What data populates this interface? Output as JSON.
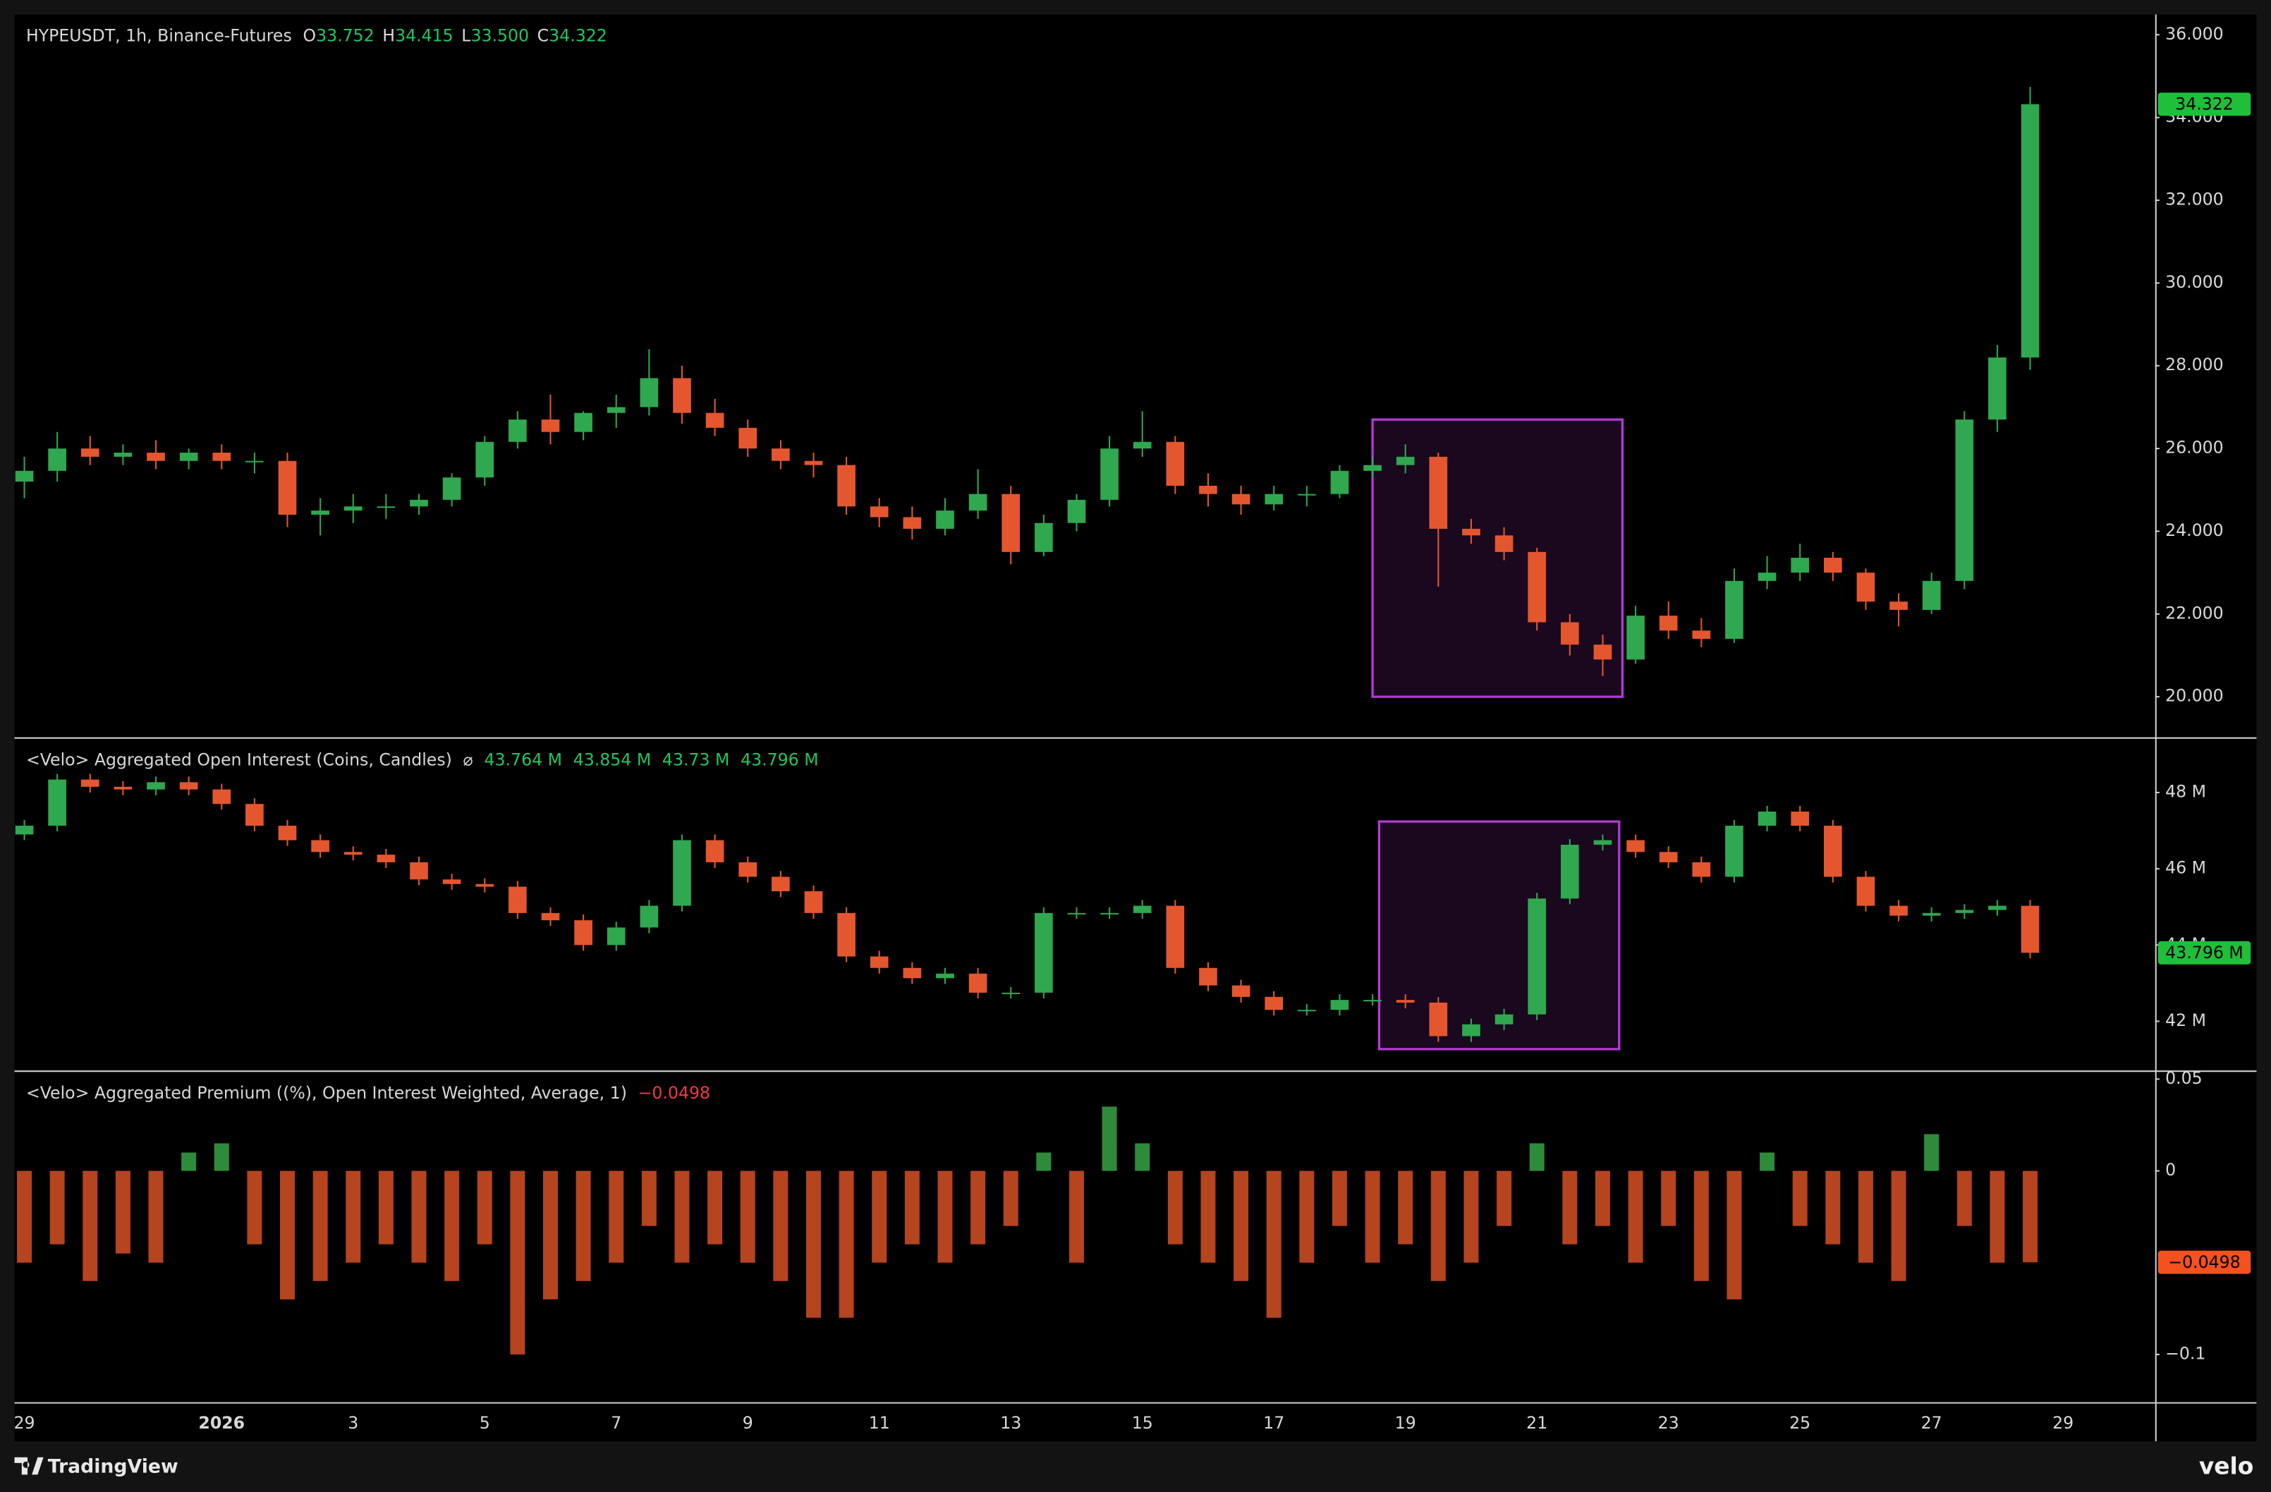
{
  "chart_data": [
    {
      "type": "candlestick",
      "title": "HYPEUSDT, 1h, Binance-Futures",
      "ohlc_labels": [
        "O",
        "H",
        "L",
        "C"
      ],
      "ohlc_values": [
        "33.752",
        "34.415",
        "33.500",
        "34.322"
      ],
      "x": [
        0,
        0.5,
        1,
        1.5,
        2,
        2.5,
        3,
        3.5,
        4,
        4.5,
        5,
        5.5,
        6,
        6.5,
        7,
        7.5,
        8,
        8.5,
        9,
        9.5,
        10,
        10.5,
        11,
        11.5,
        12,
        12.5,
        13,
        13.5,
        14,
        14.5,
        15,
        15.5,
        16,
        16.5,
        17,
        17.5,
        18,
        18.5,
        19,
        19.5,
        20,
        20.5,
        21,
        21.5,
        22,
        22.5,
        23,
        23.5,
        24,
        24.5,
        25,
        25.5,
        26,
        26.5,
        27,
        27.5,
        28,
        28.5,
        29,
        29.5,
        30,
        30.5
      ],
      "open": [
        25.2,
        25.46,
        26.0,
        25.8,
        25.9,
        25.7,
        25.9,
        25.7,
        25.7,
        24.4,
        24.5,
        24.6,
        24.6,
        24.76,
        25.3,
        26.16,
        26.7,
        26.4,
        26.86,
        27.0,
        27.7,
        26.86,
        26.5,
        26.0,
        25.7,
        25.6,
        24.6,
        24.34,
        24.06,
        24.5,
        24.9,
        23.5,
        24.2,
        24.76,
        26.0,
        26.16,
        25.1,
        24.9,
        24.65,
        24.9,
        24.9,
        25.46,
        25.6,
        25.8,
        24.06,
        23.9,
        23.5,
        21.8,
        21.26,
        20.9,
        21.96,
        21.6,
        21.4,
        22.8,
        23.0,
        23.36,
        23.0,
        22.3,
        22.1,
        22.8,
        26.7,
        28.2
      ],
      "high": [
        25.8,
        26.4,
        26.3,
        26.1,
        26.2,
        26.0,
        26.1,
        25.9,
        25.9,
        24.8,
        24.9,
        24.9,
        24.9,
        25.4,
        26.3,
        26.9,
        27.3,
        26.9,
        27.3,
        28.4,
        28.0,
        27.2,
        26.7,
        26.2,
        25.9,
        25.8,
        24.8,
        24.6,
        24.8,
        25.5,
        25.1,
        24.4,
        24.9,
        26.3,
        26.9,
        26.3,
        25.4,
        25.1,
        25.1,
        25.1,
        25.6,
        25.8,
        26.1,
        25.9,
        24.3,
        24.1,
        23.6,
        22.0,
        21.5,
        22.2,
        22.3,
        21.9,
        23.1,
        23.4,
        23.7,
        23.5,
        23.1,
        22.5,
        23.0,
        26.9,
        28.5,
        34.74
      ],
      "low": [
        24.8,
        25.2,
        25.6,
        25.6,
        25.5,
        25.5,
        25.5,
        25.4,
        24.1,
        23.9,
        24.2,
        24.3,
        24.4,
        24.6,
        25.1,
        26.0,
        26.1,
        26.2,
        26.5,
        26.8,
        26.6,
        26.3,
        25.8,
        25.5,
        25.3,
        24.4,
        24.1,
        23.8,
        23.9,
        24.3,
        23.2,
        23.4,
        24.0,
        24.6,
        25.8,
        24.9,
        24.6,
        24.4,
        24.5,
        24.6,
        24.8,
        25.3,
        25.4,
        22.66,
        23.7,
        23.3,
        21.6,
        21.0,
        20.5,
        20.8,
        21.4,
        21.2,
        21.3,
        22.6,
        22.8,
        22.8,
        22.1,
        21.7,
        22.0,
        22.6,
        26.4,
        27.9
      ],
      "close": [
        25.46,
        26.0,
        25.8,
        25.9,
        25.7,
        25.9,
        25.7,
        25.7,
        24.4,
        24.5,
        24.6,
        24.6,
        24.76,
        25.3,
        26.16,
        26.7,
        26.4,
        26.86,
        27.0,
        27.7,
        26.86,
        26.5,
        26.0,
        25.7,
        25.6,
        24.6,
        24.34,
        24.06,
        24.5,
        24.9,
        23.5,
        24.2,
        24.76,
        26.0,
        26.16,
        25.1,
        24.9,
        24.65,
        24.9,
        24.9,
        25.46,
        25.6,
        25.8,
        24.06,
        23.9,
        23.5,
        21.8,
        21.26,
        20.9,
        21.96,
        21.6,
        21.4,
        22.8,
        23.0,
        23.36,
        23.0,
        22.3,
        22.1,
        22.8,
        26.7,
        28.2,
        34.322
      ],
      "up_color": "#2fa84f",
      "down_color": "#e4572e",
      "ylim": [
        19.02,
        36.49
      ],
      "yticks": [
        {
          "value": 20,
          "label": "20.000"
        },
        {
          "value": 22,
          "label": "22.000"
        },
        {
          "value": 24,
          "label": "24.000"
        },
        {
          "value": 26,
          "label": "26.000"
        },
        {
          "value": 28,
          "label": "28.000"
        },
        {
          "value": 30,
          "label": "30.000"
        },
        {
          "value": 32,
          "label": "32.000"
        },
        {
          "value": 34,
          "label": "34.000"
        },
        {
          "value": 36,
          "label": "36.000"
        }
      ],
      "grid": false,
      "last_value": {
        "value": 34.322,
        "label": "34.322",
        "color": "#1fbf3a"
      },
      "highlight": {
        "x": [
          20.5,
          24.3
        ],
        "y": [
          20.0,
          26.7
        ],
        "color": "#b23bd6"
      }
    },
    {
      "type": "candlestick",
      "title": "<Velo> Aggregated Open Interest (Coins, Candles)",
      "status_icon": "⌀",
      "ohlc_values": [
        "43.764 M",
        "43.854 M",
        "43.73 M",
        "43.796 M"
      ],
      "x": [
        0,
        0.5,
        1,
        1.5,
        2,
        2.5,
        3,
        3.5,
        4,
        4.5,
        5,
        5.5,
        6,
        6.5,
        7,
        7.5,
        8,
        8.5,
        9,
        9.5,
        10,
        10.5,
        11,
        11.5,
        12,
        12.5,
        13,
        13.5,
        14,
        14.5,
        15,
        15.5,
        16,
        16.5,
        17,
        17.5,
        18,
        18.5,
        19,
        19.5,
        20,
        20.5,
        21,
        21.5,
        22,
        22.5,
        23,
        23.5,
        24,
        24.5,
        25,
        25.5,
        26,
        26.5,
        27,
        27.5,
        28,
        28.5,
        29,
        29.5,
        30,
        30.5
      ],
      "open": [
        46.9,
        47.13,
        48.34,
        48.15,
        48.08,
        48.27,
        48.08,
        47.7,
        47.13,
        46.75,
        46.44,
        46.37,
        46.17,
        45.72,
        45.6,
        45.53,
        44.84,
        44.65,
        44.0,
        44.46,
        45.03,
        46.75,
        46.17,
        45.79,
        45.41,
        44.84,
        43.7,
        43.4,
        43.13,
        43.25,
        42.75,
        42.75,
        44.84,
        44.84,
        44.84,
        45.03,
        43.4,
        42.94,
        42.64,
        42.3,
        42.3,
        42.56,
        42.56,
        42.49,
        41.61,
        41.92,
        42.18,
        45.22,
        46.63,
        46.75,
        46.44,
        46.17,
        45.79,
        47.13,
        47.5,
        47.13,
        45.79,
        45.03,
        44.77,
        44.84,
        44.92,
        45.03
      ],
      "high": [
        47.28,
        48.49,
        48.49,
        48.3,
        48.42,
        48.42,
        48.23,
        47.85,
        47.28,
        46.9,
        46.59,
        46.52,
        46.32,
        45.87,
        45.75,
        45.68,
        44.99,
        44.8,
        44.61,
        45.18,
        46.9,
        46.9,
        46.32,
        45.94,
        45.56,
        44.99,
        43.85,
        43.55,
        43.4,
        43.4,
        42.9,
        44.99,
        44.99,
        44.99,
        45.18,
        45.18,
        43.55,
        43.09,
        42.79,
        42.45,
        42.71,
        42.71,
        42.71,
        42.64,
        42.07,
        42.33,
        45.37,
        46.78,
        46.9,
        46.9,
        46.59,
        46.32,
        47.28,
        47.65,
        47.65,
        47.28,
        45.94,
        45.18,
        44.99,
        45.07,
        45.18,
        45.18
      ],
      "low": [
        46.75,
        46.98,
        48.0,
        47.93,
        47.93,
        47.93,
        47.55,
        46.98,
        46.6,
        46.29,
        46.22,
        46.02,
        45.57,
        45.45,
        45.38,
        44.69,
        44.5,
        43.85,
        43.85,
        44.31,
        44.88,
        46.02,
        45.64,
        45.26,
        44.69,
        43.55,
        43.25,
        42.98,
        42.98,
        42.6,
        42.6,
        42.6,
        44.69,
        44.69,
        44.69,
        43.25,
        42.79,
        42.49,
        42.15,
        42.15,
        42.15,
        42.41,
        42.34,
        41.46,
        41.46,
        41.77,
        42.03,
        45.07,
        46.48,
        46.29,
        46.02,
        45.64,
        45.64,
        46.98,
        46.98,
        45.64,
        44.88,
        44.62,
        44.62,
        44.69,
        44.77,
        43.65
      ],
      "close": [
        47.13,
        48.34,
        48.15,
        48.08,
        48.27,
        48.08,
        47.7,
        47.13,
        46.75,
        46.44,
        46.37,
        46.17,
        45.72,
        45.6,
        45.53,
        44.84,
        44.65,
        44.0,
        44.46,
        45.03,
        46.75,
        46.17,
        45.79,
        45.41,
        44.84,
        43.7,
        43.4,
        43.13,
        43.25,
        42.75,
        42.75,
        44.84,
        44.84,
        44.84,
        45.03,
        43.4,
        42.94,
        42.64,
        42.3,
        42.3,
        42.56,
        42.56,
        42.49,
        41.61,
        41.92,
        42.18,
        45.22,
        46.63,
        46.75,
        46.44,
        46.17,
        45.79,
        47.13,
        47.5,
        47.13,
        45.79,
        45.03,
        44.77,
        44.84,
        44.92,
        45.03,
        43.796
      ],
      "up_color": "#2fa84f",
      "down_color": "#e4572e",
      "ylim": [
        40.71,
        49.41
      ],
      "yticks": [
        {
          "value": 42,
          "label": "42 M"
        },
        {
          "value": 44,
          "label": "44 M"
        },
        {
          "value": 46,
          "label": "46 M"
        },
        {
          "value": 48,
          "label": "48 M"
        }
      ],
      "grid": false,
      "last_value": {
        "value": 43.796,
        "label": "43.796 M",
        "color": "#1fbf3a"
      },
      "highlight": {
        "x": [
          20.6,
          24.25
        ],
        "y": [
          41.27,
          47.24
        ],
        "color": "#b23bd6"
      }
    },
    {
      "type": "bar",
      "title": "<Velo> Aggregated Premium ((%), Open Interest Weighted, Average, 1)",
      "x": [
        0,
        0.5,
        1,
        1.5,
        2,
        2.5,
        3,
        3.5,
        4,
        4.5,
        5,
        5.5,
        6,
        6.5,
        7,
        7.5,
        8,
        8.5,
        9,
        9.5,
        10,
        10.5,
        11,
        11.5,
        12,
        12.5,
        13,
        13.5,
        14,
        14.5,
        15,
        15.5,
        16,
        16.5,
        17,
        17.5,
        18,
        18.5,
        19,
        19.5,
        20,
        20.5,
        21,
        21.5,
        22,
        22.5,
        23,
        23.5,
        24,
        24.5,
        25,
        25.5,
        26,
        26.5,
        27,
        27.5,
        28,
        28.5,
        29,
        29.5,
        30,
        30.5
      ],
      "values": [
        -0.05,
        -0.04,
        -0.06,
        -0.045,
        -0.05,
        0.01,
        0.015,
        -0.04,
        -0.07,
        -0.06,
        -0.05,
        -0.04,
        -0.05,
        -0.06,
        -0.04,
        -0.1,
        -0.07,
        -0.06,
        -0.05,
        -0.03,
        -0.05,
        -0.04,
        -0.05,
        -0.06,
        -0.08,
        -0.08,
        -0.05,
        -0.04,
        -0.05,
        -0.04,
        -0.03,
        0.01,
        -0.05,
        0.035,
        0.015,
        -0.04,
        -0.05,
        -0.06,
        -0.08,
        -0.05,
        -0.03,
        -0.05,
        -0.04,
        -0.06,
        -0.05,
        -0.03,
        0.015,
        -0.04,
        -0.03,
        -0.05,
        -0.03,
        -0.06,
        -0.07,
        0.01,
        -0.03,
        -0.04,
        -0.05,
        -0.06,
        0.02,
        -0.03,
        -0.05,
        -0.0498
      ],
      "positive_color": "#2e8b3a",
      "negative_color": "#b5441f",
      "ylim": [
        -0.126,
        0.0539
      ],
      "yticks": [
        0.05,
        0,
        {
          "value": -0.1,
          "label": "−0.1"
        }
      ],
      "grid": false,
      "last_value": {
        "value": -0.0498,
        "label": "−0.0498",
        "color": "#f4511e"
      },
      "xlim": [
        -0.15,
        32.4
      ],
      "xticks": [
        {
          "value": 0,
          "label": "29"
        },
        {
          "value": 3,
          "label": "2026"
        },
        {
          "value": 5,
          "label": "3"
        },
        {
          "value": 7,
          "label": "5"
        },
        {
          "value": 9,
          "label": "7"
        },
        {
          "value": 11,
          "label": "9"
        },
        {
          "value": 13,
          "label": "11"
        },
        {
          "value": 15,
          "label": "13"
        },
        {
          "value": 17,
          "label": "15"
        },
        {
          "value": 19,
          "label": "17"
        },
        {
          "value": 21,
          "label": "19"
        },
        {
          "value": 23,
          "label": "21"
        },
        {
          "value": 25,
          "label": "23"
        },
        {
          "value": 27,
          "label": "25"
        },
        {
          "value": 29,
          "label": "27"
        },
        {
          "value": 31,
          "label": "29"
        }
      ]
    }
  ],
  "footer": {
    "brand": "TradingView",
    "source": "velo"
  }
}
